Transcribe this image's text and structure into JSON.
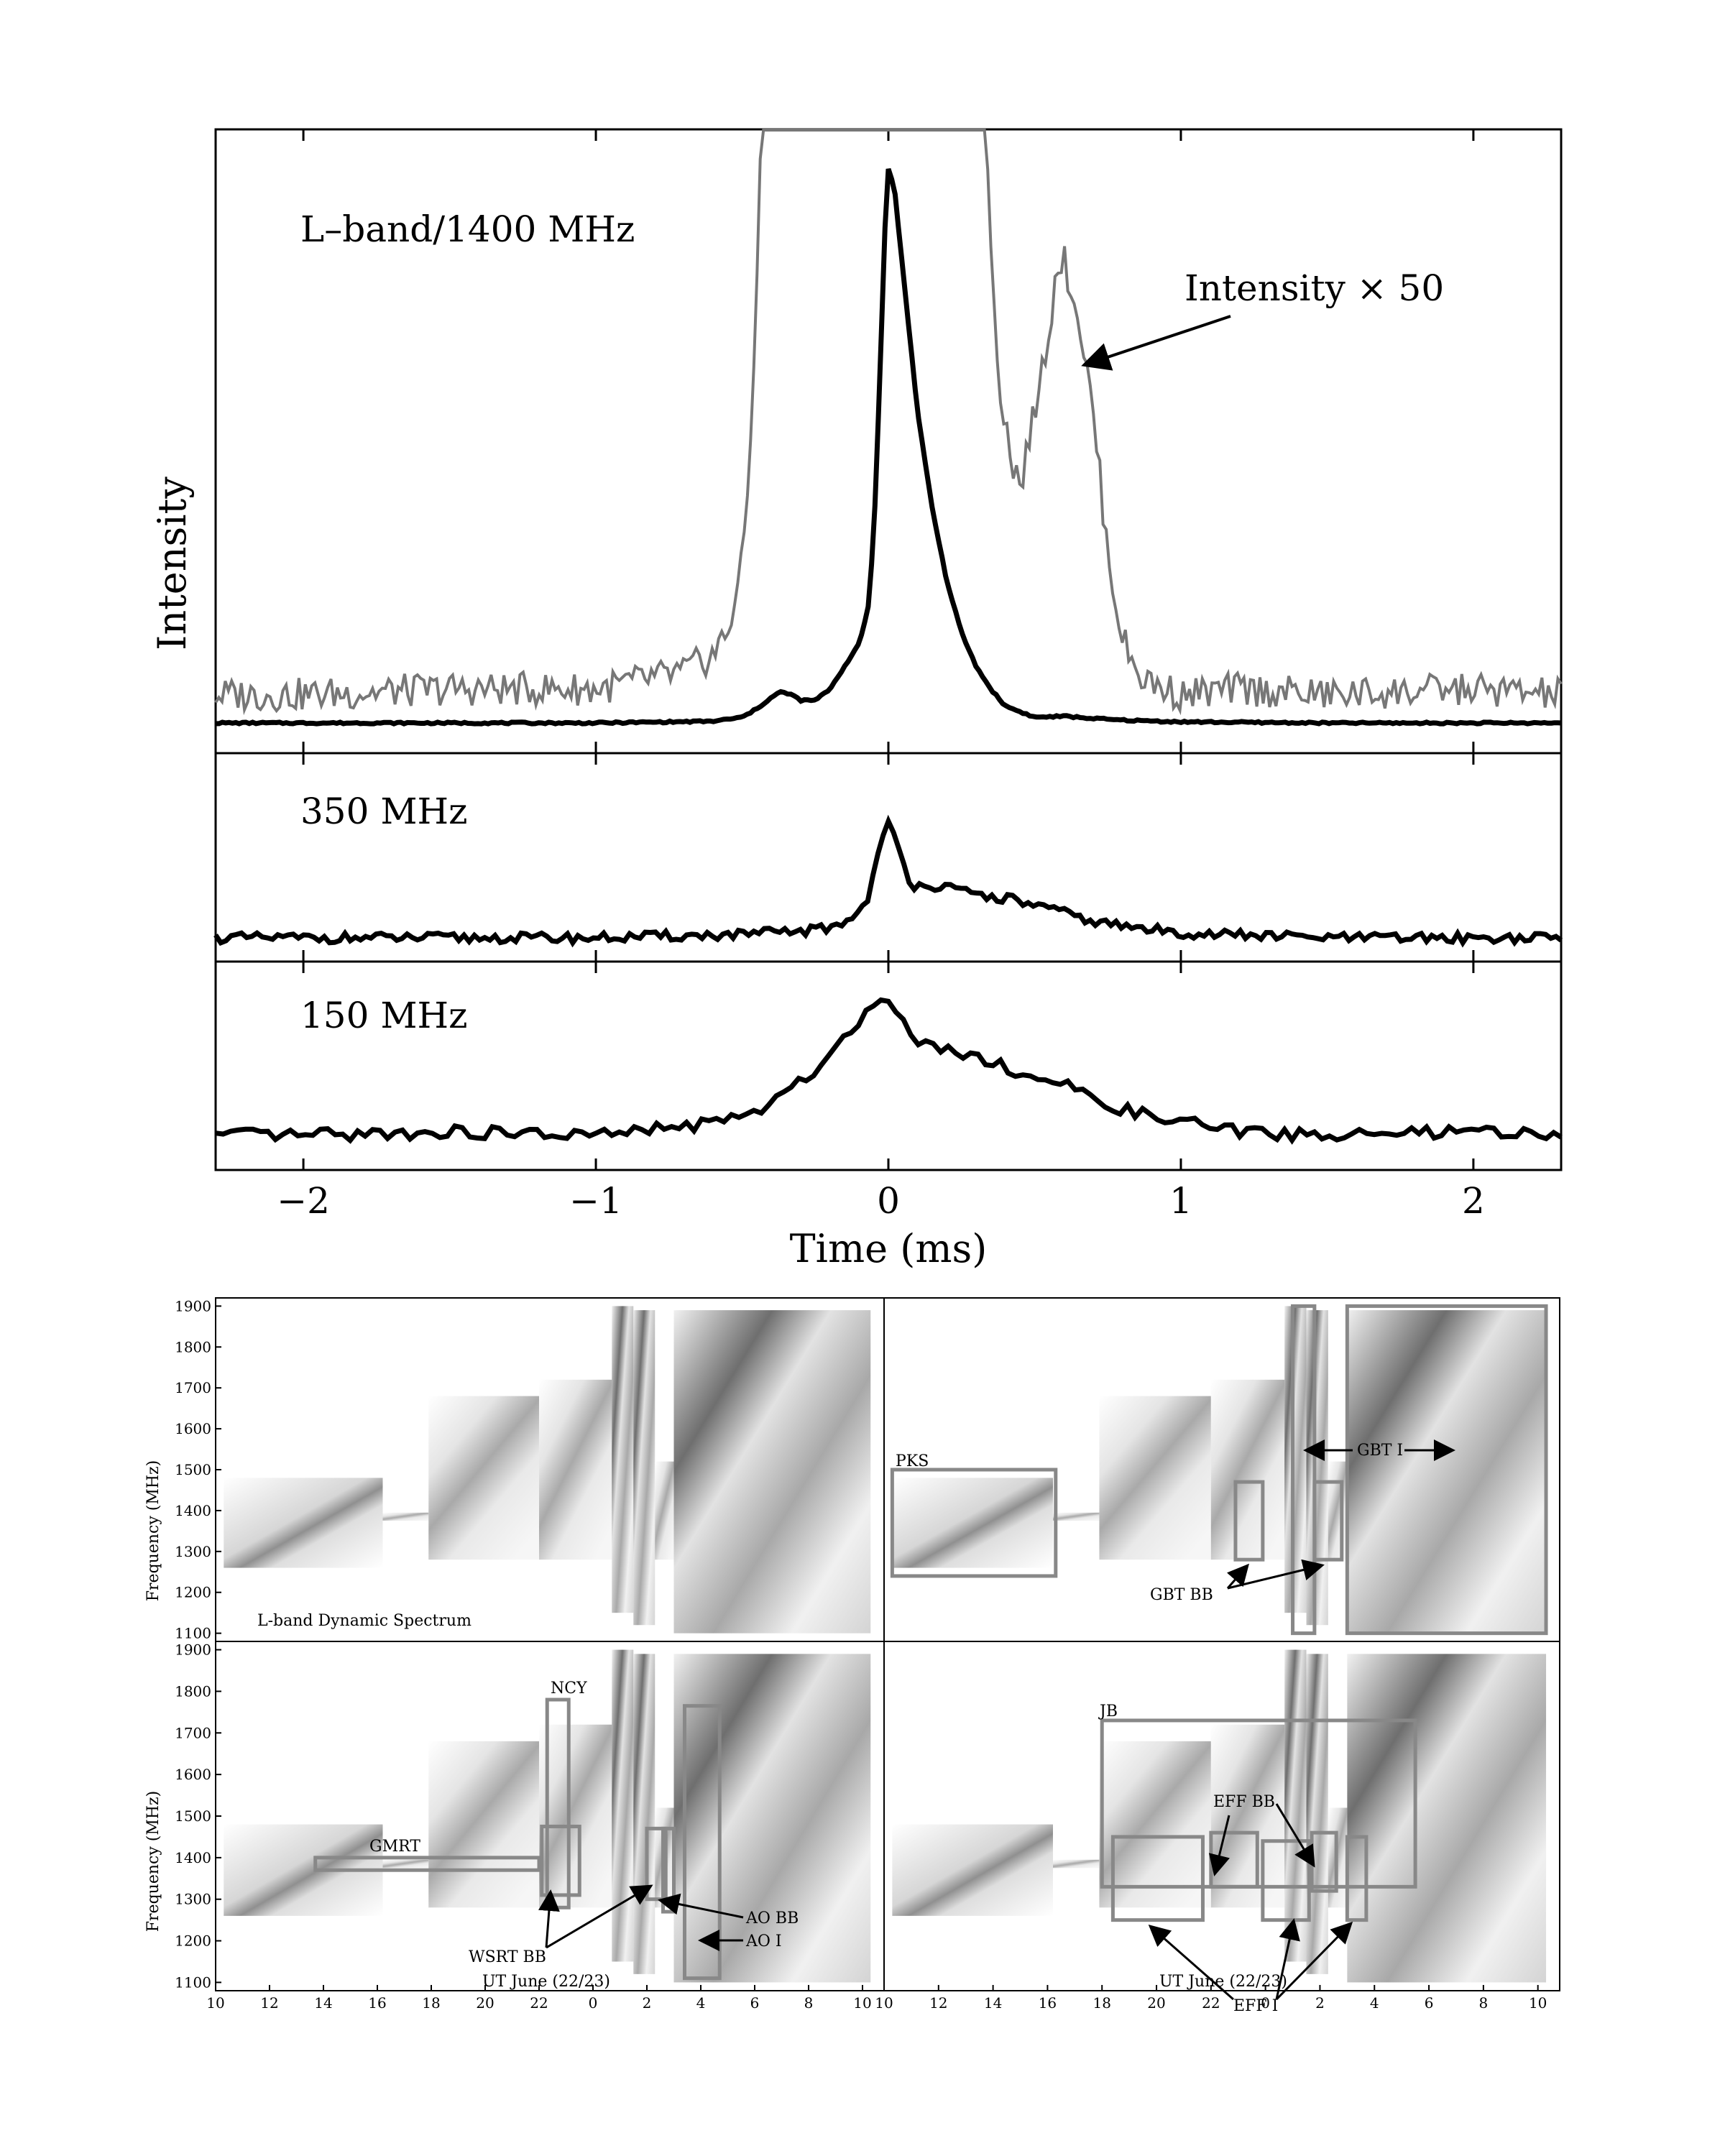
{
  "chart_data": [
    {
      "type": "line",
      "panel": "top",
      "label": "L–band/1400 MHz",
      "ylabel": "Intensity",
      "annotation": "Intensity × 50",
      "xlim": [
        -2.3,
        2.3
      ],
      "series": [
        {
          "name": "",
          "color": "#000000",
          "x": [
            -2.3,
            -2,
            -1.5,
            -1,
            -0.6,
            -0.5,
            -0.45,
            -0.4,
            -0.37,
            -0.33,
            -0.3,
            -0.25,
            -0.2,
            -0.15,
            -0.1,
            -0.07,
            -0.05,
            -0.03,
            -0.01,
            0,
            0.02,
            0.05,
            0.1,
            0.15,
            0.2,
            0.25,
            0.3,
            0.35,
            0.4,
            0.5,
            0.6,
            0.7,
            0.8,
            1,
            1.5,
            2,
            2.3
          ],
          "y": [
            0,
            0,
            0,
            0,
            0.003,
            0.01,
            0.025,
            0.045,
            0.055,
            0.05,
            0.04,
            0.04,
            0.06,
            0.1,
            0.14,
            0.2,
            0.33,
            0.6,
            0.9,
            0.98,
            0.95,
            0.8,
            0.55,
            0.38,
            0.25,
            0.16,
            0.1,
            0.06,
            0.03,
            0.01,
            0.012,
            0.008,
            0.005,
            0.002,
            0,
            0,
            0
          ]
        },
        {
          "name": "",
          "color": "#777777",
          "x": [
            -2.3,
            -2,
            -1.5,
            -1,
            -0.7,
            -0.6,
            -0.55,
            -0.5,
            -0.47,
            -0.45,
            -0.43,
            0.33,
            0.35,
            0.38,
            0.42,
            0.45,
            0.5,
            0.55,
            0.58,
            0.6,
            0.62,
            0.65,
            0.7,
            0.75,
            0.8,
            0.85,
            0.9,
            1,
            1.2,
            1.5,
            2,
            2.3
          ],
          "y": [
            0.05,
            0.05,
            0.06,
            0.06,
            0.09,
            0.12,
            0.16,
            0.28,
            0.5,
            0.8,
            1.1,
            1.1,
            0.85,
            0.6,
            0.47,
            0.42,
            0.55,
            0.7,
            0.82,
            0.82,
            0.78,
            0.72,
            0.55,
            0.3,
            0.15,
            0.09,
            0.07,
            0.05,
            0.06,
            0.05,
            0.06,
            0.05
          ]
        }
      ]
    },
    {
      "type": "line",
      "panel": "middle",
      "label": "350 MHz",
      "xlim": [
        -2.3,
        2.3
      ],
      "series": [
        {
          "name": "",
          "color": "#000000",
          "x": [
            -2.3,
            -2,
            -1.5,
            -1,
            -0.5,
            -0.3,
            -0.2,
            -0.15,
            -0.1,
            -0.07,
            -0.05,
            -0.02,
            0,
            0.02,
            0.05,
            0.08,
            0.12,
            0.2,
            0.3,
            0.4,
            0.5,
            0.6,
            0.7,
            0.8,
            1,
            1.5,
            2,
            2.3
          ],
          "y": [
            0,
            0,
            0,
            0,
            0.02,
            0.04,
            0.06,
            0.1,
            0.15,
            0.25,
            0.4,
            0.6,
            0.68,
            0.62,
            0.45,
            0.32,
            0.33,
            0.3,
            0.26,
            0.24,
            0.2,
            0.15,
            0.1,
            0.07,
            0.03,
            0,
            0,
            0
          ]
        }
      ]
    },
    {
      "type": "line",
      "panel": "bottom",
      "label": "150 MHz",
      "xlabel": "Time (ms)",
      "xlim": [
        -2.3,
        2.3
      ],
      "xticks": [
        -2,
        -1,
        0,
        1,
        2
      ],
      "xtick_labels": [
        "−2",
        "−1",
        "0",
        "1",
        "2"
      ],
      "series": [
        {
          "name": "",
          "color": "#000000",
          "x": [
            -2.3,
            -2,
            -1.5,
            -1,
            -0.7,
            -0.5,
            -0.35,
            -0.3,
            -0.2,
            -0.1,
            -0.05,
            0,
            0.05,
            0.1,
            0.15,
            0.2,
            0.3,
            0.4,
            0.5,
            0.6,
            0.7,
            0.8,
            0.9,
            1,
            1.2,
            1.5,
            2,
            2.3
          ],
          "y": [
            0.1,
            0.1,
            0.12,
            0.1,
            0.15,
            0.2,
            0.32,
            0.4,
            0.55,
            0.75,
            0.82,
            0.85,
            0.78,
            0.62,
            0.6,
            0.58,
            0.55,
            0.48,
            0.42,
            0.38,
            0.3,
            0.25,
            0.2,
            0.18,
            0.12,
            0.1,
            0.12,
            0.1
          ]
        }
      ]
    },
    {
      "type": "heatmap",
      "panels": [
        {
          "label": "L-band Dynamic Spectrum",
          "boxes": []
        },
        {
          "boxes": [
            {
              "label": "PKS",
              "t0": 10.3,
              "t1": 16.3,
              "f0": 1240,
              "f1": 1500
            },
            {
              "label": "",
              "t0": 22.9,
              "t1": 23.9,
              "f0": 1280,
              "f1": 1470
            },
            {
              "label": "",
              "t0": 25,
              "t1": 25.8,
              "f0": 1100,
              "f1": 1900
            },
            {
              "label": "",
              "t0": 25.8,
              "t1": 26.8,
              "f0": 1280,
              "f1": 1470
            },
            {
              "label": "",
              "t0": 27.0,
              "t1": 34.3,
              "f0": 1100,
              "f1": 1900
            }
          ],
          "arrows": [
            {
              "label": "GBT I",
              "anchor_t": 27.6,
              "anchor_f": 1550
            },
            {
              "label": "GBT BB",
              "anchor_t": 23.4,
              "anchor_f": 1170
            }
          ]
        },
        {
          "boxes": [
            {
              "label": "GMRT",
              "t0": 13.7,
              "t1": 22.0,
              "f0": 1370,
              "f1": 1400
            },
            {
              "label": "NCY",
              "t0": 22.3,
              "t1": 23.1,
              "f0": 1280,
              "f1": 1780
            },
            {
              "label": "",
              "t0": 22.1,
              "t1": 23.5,
              "f0": 1310,
              "f1": 1475
            },
            {
              "label": "",
              "t0": 26.0,
              "t1": 26.7,
              "f0": 1300,
              "f1": 1470
            },
            {
              "label": "",
              "t0": 26.6,
              "t1": 27.0,
              "f0": 1270,
              "f1": 1470
            },
            {
              "label": "",
              "t0": 27.4,
              "t1": 28.7,
              "f0": 1110,
              "f1": 1765
            }
          ],
          "arrows": [
            {
              "label": "WSRT BB"
            },
            {
              "label": "AO BB"
            },
            {
              "label": "AO I"
            }
          ]
        },
        {
          "boxes": [
            {
              "label": "JB",
              "t0": 18,
              "t1": 29.5,
              "f0": 1330,
              "f1": 1730
            },
            {
              "label": "",
              "t0": 18.4,
              "t1": 21.7,
              "f0": 1250,
              "f1": 1450
            },
            {
              "label": "",
              "t0": 22.0,
              "t1": 23.7,
              "f0": 1330,
              "f1": 1460
            },
            {
              "label": "",
              "t0": 23.9,
              "t1": 25.6,
              "f0": 1250,
              "f1": 1440
            },
            {
              "label": "",
              "t0": 25.7,
              "t1": 26.6,
              "f0": 1320,
              "f1": 1460
            },
            {
              "label": "",
              "t0": 27.0,
              "t1": 27.7,
              "f0": 1250,
              "f1": 1450
            }
          ],
          "arrows": [
            {
              "label": "EFF BB"
            },
            {
              "label": "EFF I"
            }
          ]
        }
      ],
      "ylabel": "Frequency (MHz)",
      "xlabel": "UT June (22/23)",
      "ylim": [
        1080,
        1920
      ],
      "yticks": [
        1100,
        1200,
        1300,
        1400,
        1500,
        1600,
        1700,
        1800,
        1900
      ],
      "xlim": [
        10,
        34.8
      ],
      "xtick_labels": [
        "10",
        "12",
        "14",
        "16",
        "18",
        "20",
        "22",
        "0",
        "2",
        "4",
        "6",
        "8",
        "10"
      ]
    }
  ]
}
